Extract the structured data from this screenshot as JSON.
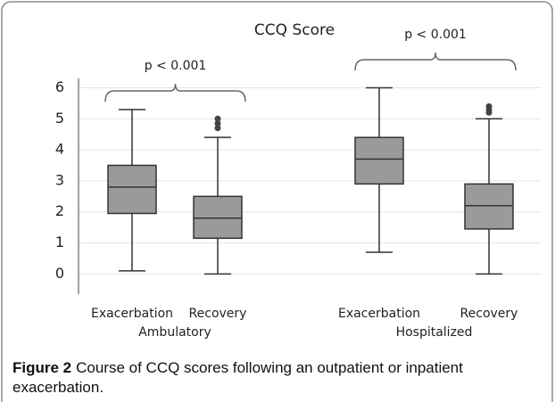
{
  "chart_data": {
    "type": "box",
    "title": "CCQ Score",
    "categories": [
      "Exacerbation",
      "Recovery",
      "Exacerbation",
      "Recovery"
    ],
    "groups": [
      "Ambulatory",
      "Hospitalized"
    ],
    "annotations": [
      "p < 0.001",
      "p < 0.001"
    ],
    "color": "#9a9a9a",
    "boxes": [
      {
        "min": 0.1,
        "q1": 1.95,
        "median": 2.8,
        "q3": 3.5,
        "max": 5.3,
        "outliers": []
      },
      {
        "min": 0,
        "q1": 1.15,
        "median": 1.8,
        "q3": 2.5,
        "max": 4.4,
        "outliers": [
          4.7,
          4.85,
          5.0
        ]
      },
      {
        "min": 0.7,
        "q1": 2.9,
        "median": 3.7,
        "q3": 4.4,
        "max": 6.0,
        "outliers": []
      },
      {
        "min": 0,
        "q1": 1.45,
        "median": 2.2,
        "q3": 2.9,
        "max": 5.0,
        "outliers": [
          5.2,
          5.3,
          5.4
        ]
      }
    ],
    "ylim": [
      -0.65,
      6.3
    ],
    "yticks": [
      0,
      1,
      2,
      3,
      4,
      5,
      6
    ],
    "grid": true
  },
  "caption": {
    "label": "Figure 2",
    "text": "Course of CCQ scores following an outpatient or inpatient exacerbation."
  }
}
